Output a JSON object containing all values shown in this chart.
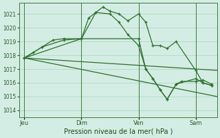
{
  "background_color": "#d4ede4",
  "grid_color": "#a8d4bc",
  "line_color": "#2d6e2d",
  "xlabel": "Pression niveau de la mer( hPa )",
  "ylim": [
    1013.5,
    1021.8
  ],
  "yticks": [
    1014,
    1015,
    1016,
    1017,
    1018,
    1019,
    1020,
    1021
  ],
  "xtick_labels": [
    "Jeu",
    "Dim",
    "Ven",
    "Sam"
  ],
  "xtick_positions": [
    0,
    32,
    64,
    96
  ],
  "vline_positions": [
    0,
    32,
    64,
    96
  ],
  "xlim": [
    -3,
    108
  ],
  "series_straight1": {
    "x": [
      0,
      108
    ],
    "y": [
      1017.8,
      1016.9
    ]
  },
  "series_straight2": {
    "x": [
      0,
      108
    ],
    "y": [
      1017.8,
      1015.0
    ]
  },
  "series_wiggly1": {
    "x": [
      0,
      5,
      10,
      16,
      22,
      32,
      36,
      40,
      44,
      48,
      53,
      58,
      64,
      68,
      72,
      76,
      80,
      85,
      96,
      100,
      105
    ],
    "y": [
      1017.8,
      1018.2,
      1018.6,
      1019.1,
      1019.2,
      1019.2,
      1020.7,
      1021.1,
      1021.5,
      1021.2,
      1021.0,
      1020.5,
      1021.0,
      1020.4,
      1018.7,
      1018.7,
      1018.5,
      1019.0,
      1016.9,
      1016.0,
      1015.8
    ]
  },
  "series_wiggly2": {
    "x": [
      0,
      10,
      22,
      32,
      40,
      48,
      53,
      58,
      64,
      68,
      72,
      76,
      80,
      85,
      96,
      100,
      105
    ],
    "y": [
      1017.8,
      1018.6,
      1019.1,
      1019.2,
      1021.1,
      1021.0,
      1020.4,
      1019.5,
      1018.7,
      1017.0,
      1016.3,
      1015.5,
      1014.8,
      1015.9,
      1016.3,
      1016.0,
      1015.8
    ]
  },
  "series_wiggly3": {
    "x": [
      0,
      32,
      64,
      68,
      72,
      76,
      80,
      85,
      88,
      96,
      100,
      105
    ],
    "y": [
      1017.8,
      1019.2,
      1019.2,
      1017.0,
      1016.3,
      1015.5,
      1014.8,
      1015.9,
      1016.1,
      1016.1,
      1016.2,
      1015.9
    ]
  }
}
